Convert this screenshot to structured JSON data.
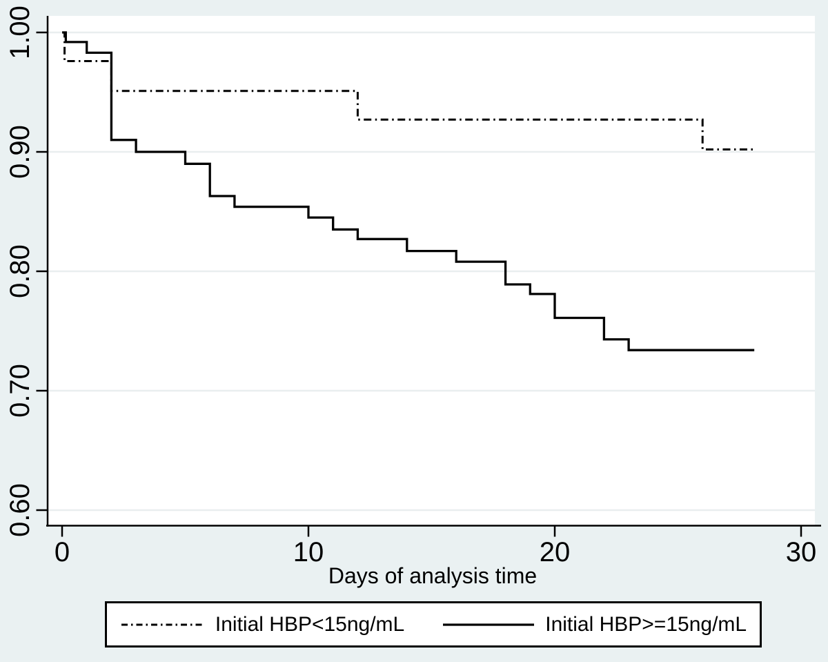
{
  "figure": {
    "background_color": "#eaf1f2",
    "plot_background_color": "#ffffff",
    "gridline_color": "#e9eeef",
    "line_color": "#000000"
  },
  "chart_data": {
    "type": "line",
    "subtype": "kaplan-meier-survival-step",
    "title": "",
    "xlabel": "Days of analysis time",
    "ylabel": "",
    "xlim": [
      -0.6,
      30.6
    ],
    "ylim": [
      0.585,
      1.014
    ],
    "grid": "horizontal",
    "legend_position": "bottom",
    "x_ticks": [
      {
        "value": 0,
        "label": "0"
      },
      {
        "value": 10,
        "label": "10"
      },
      {
        "value": 20,
        "label": "20"
      },
      {
        "value": 30,
        "label": "30"
      }
    ],
    "y_ticks": [
      {
        "value": 1.0,
        "label": "1.00"
      },
      {
        "value": 0.9,
        "label": "0.90"
      },
      {
        "value": 0.8,
        "label": "0.80"
      },
      {
        "value": 0.7,
        "label": "0.70"
      },
      {
        "value": 0.6,
        "label": "0.60"
      }
    ],
    "series": [
      {
        "id": "hbp-lt-15",
        "name": "Initial HBP<15ng/mL",
        "style": "dashdot",
        "color": "#000000",
        "x_end": 28.1,
        "steps": [
          [
            0,
            1.0
          ],
          [
            0.1,
            0.976
          ],
          [
            2,
            0.951
          ],
          [
            12,
            0.927
          ],
          [
            26,
            0.902
          ]
        ]
      },
      {
        "id": "hbp-ge-15",
        "name": "Initial HBP>=15ng/mL",
        "style": "solid",
        "color": "#000000",
        "x_end": 28.1,
        "steps": [
          [
            0,
            1.0
          ],
          [
            0.15,
            0.992
          ],
          [
            1,
            0.983
          ],
          [
            2,
            0.91
          ],
          [
            3,
            0.9
          ],
          [
            5,
            0.89
          ],
          [
            6,
            0.863
          ],
          [
            7,
            0.854
          ],
          [
            10,
            0.845
          ],
          [
            11,
            0.835
          ],
          [
            12,
            0.827
          ],
          [
            14,
            0.817
          ],
          [
            16,
            0.808
          ],
          [
            18,
            0.789
          ],
          [
            19,
            0.781
          ],
          [
            20,
            0.761
          ],
          [
            22,
            0.743
          ],
          [
            23,
            0.734
          ]
        ]
      }
    ]
  },
  "legend": {
    "entries": [
      {
        "label": "Initial HBP<15ng/mL",
        "style": "dashdot"
      },
      {
        "label": "Initial HBP>=15ng/mL",
        "style": "solid"
      }
    ]
  }
}
